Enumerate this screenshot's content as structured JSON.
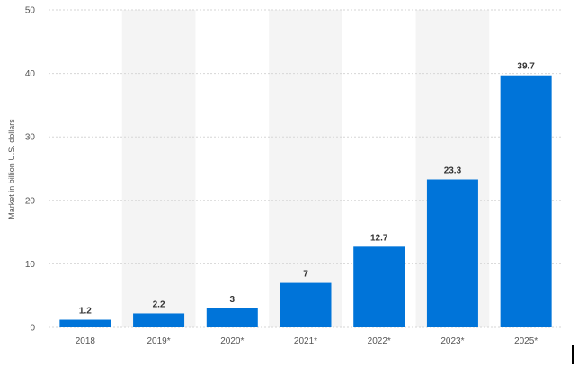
{
  "chart_data": {
    "type": "bar",
    "categories": [
      "2018",
      "2019*",
      "2020*",
      "2021*",
      "2022*",
      "2023*",
      "2025*"
    ],
    "values": [
      1.2,
      2.2,
      3,
      7,
      12.7,
      23.3,
      39.7
    ],
    "data_labels": [
      "1.2",
      "2.2",
      "3",
      "7",
      "12.7",
      "23.3",
      "39.7"
    ],
    "title": "",
    "xlabel": "",
    "ylabel": "Market in billion U.S. dollars",
    "ylim": [
      0,
      50
    ],
    "yticks": [
      0,
      10,
      20,
      30,
      40,
      50
    ],
    "grid": true,
    "alternating_column_bands": true,
    "colors": {
      "bar": "#0074d9",
      "band": "#f4f4f4",
      "grid": "#d6d6d6"
    }
  }
}
